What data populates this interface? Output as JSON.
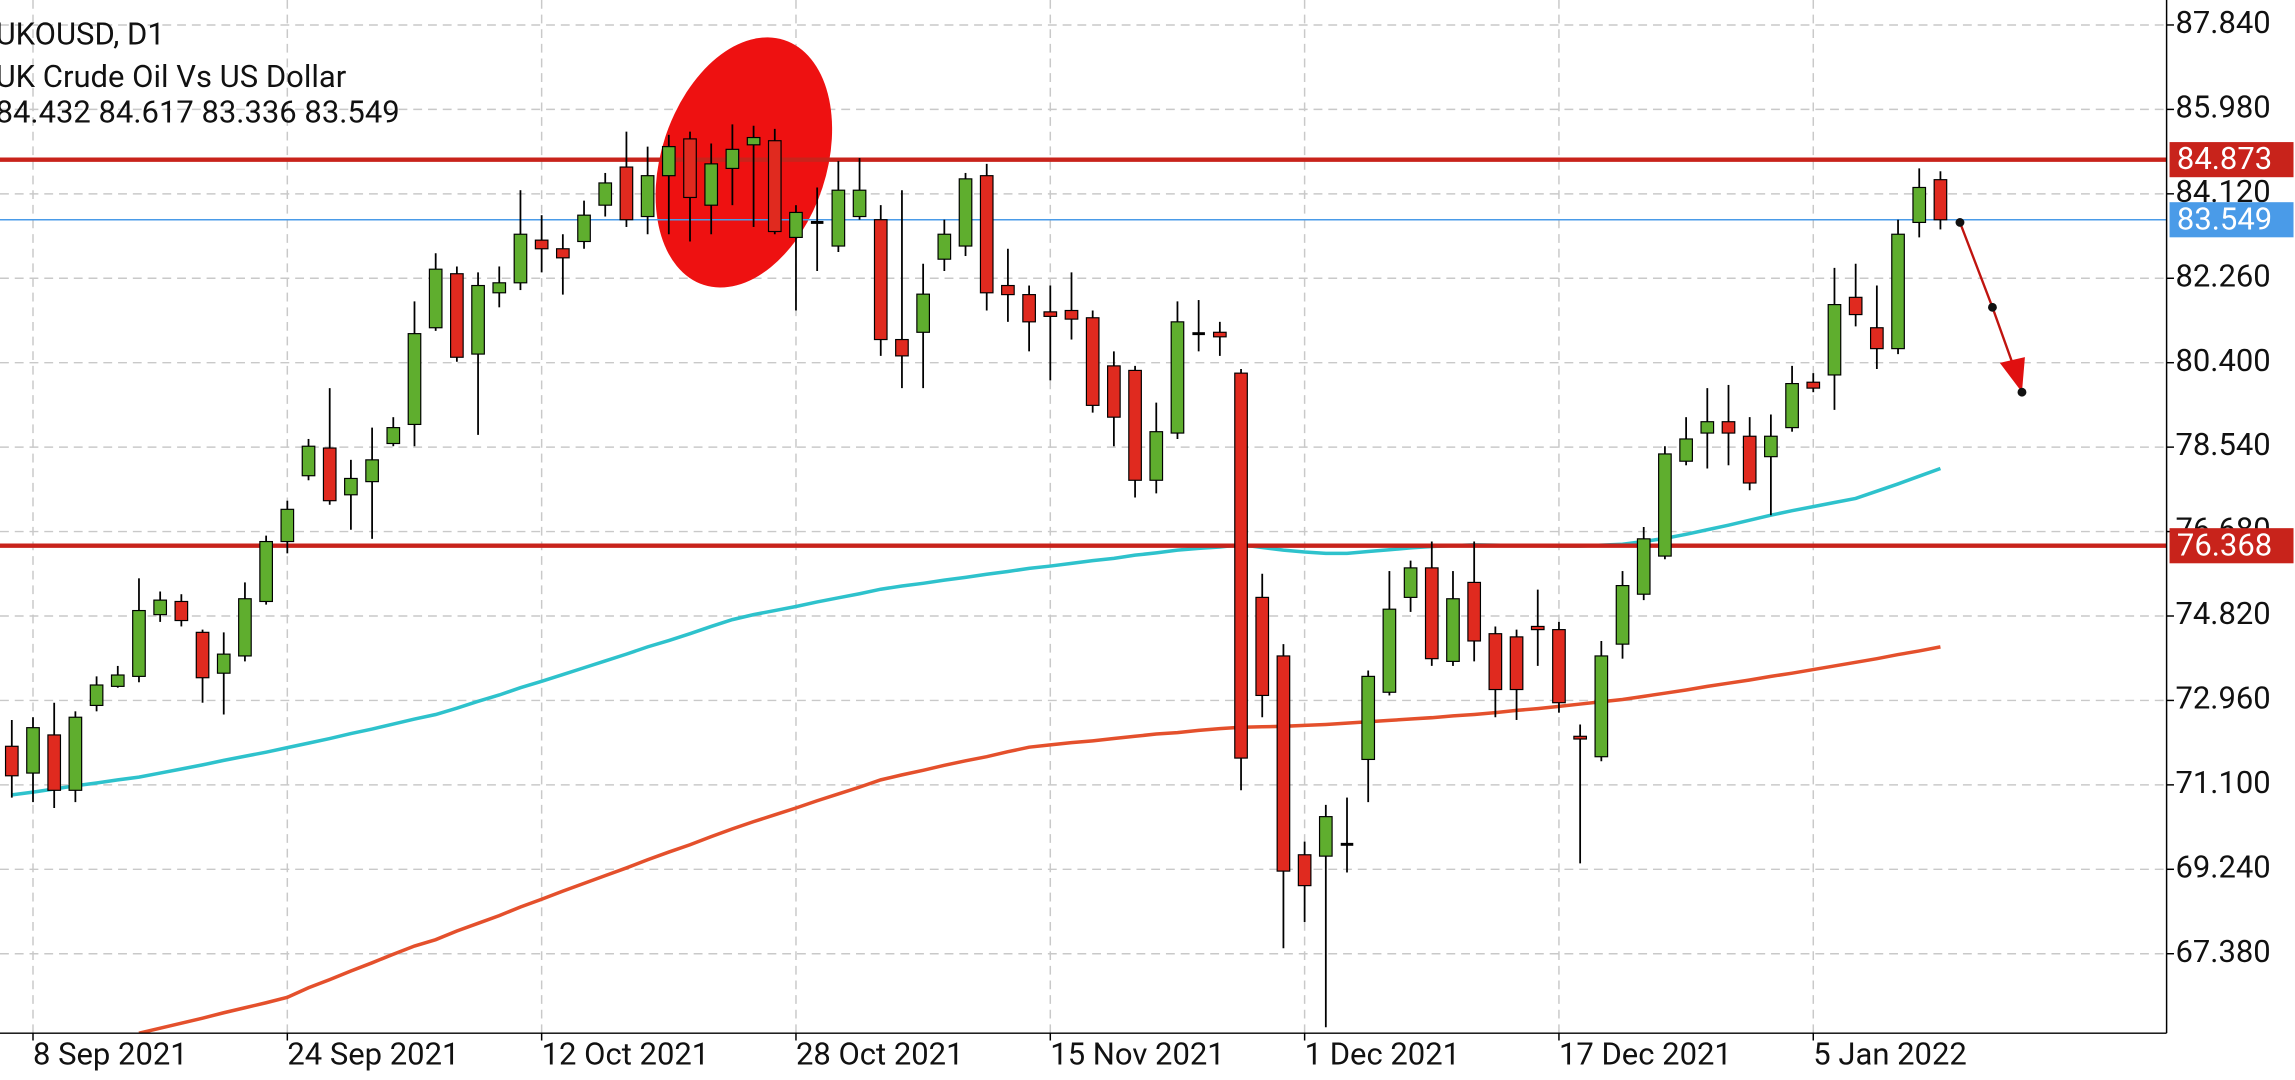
{
  "chart_data": {
    "type": "candlestick",
    "title": "UKOUSD, D1",
    "subtitle": "UK Crude Oil Vs US Dollar",
    "ohlc_text": "84.432 84.617 83.336 83.549",
    "categories": [
      null,
      "8 Sep 2021",
      null,
      null,
      null,
      null,
      null,
      null,
      null,
      null,
      null,
      null,
      null,
      "24 Sep 2021",
      null,
      null,
      null,
      null,
      null,
      null,
      null,
      null,
      null,
      null,
      null,
      "12 Oct 2021",
      null,
      null,
      null,
      null,
      null,
      null,
      null,
      null,
      null,
      null,
      null,
      "28 Oct 2021",
      null,
      null,
      null,
      null,
      null,
      null,
      null,
      null,
      null,
      null,
      null,
      "15 Nov 2021",
      null,
      null,
      null,
      null,
      null,
      null,
      null,
      null,
      null,
      null,
      null,
      "1 Dec 2021",
      null,
      null,
      null,
      null,
      null,
      null,
      null,
      null,
      null,
      null,
      null,
      "17 Dec 2021",
      null,
      null,
      null,
      null,
      null,
      null,
      null,
      null,
      null,
      null,
      null,
      "5 Jan 2022",
      null,
      null,
      null,
      null,
      null,
      null
    ],
    "open": [
      71.95,
      71.36,
      72.2,
      70.98,
      72.85,
      73.27,
      73.49,
      74.85,
      75.14,
      74.46,
      73.56,
      73.94,
      75.14,
      76.46,
      77.91,
      78.52,
      77.49,
      77.78,
      78.62,
      79.04,
      81.17,
      82.36,
      80.59,
      81.94,
      82.16,
      83.1,
      82.91,
      83.07,
      83.87,
      84.71,
      83.62,
      84.52,
      85.33,
      83.87,
      84.68,
      85.2,
      85.29,
      83.16,
      83.49,
      82.97,
      83.62,
      83.55,
      80.91,
      81.07,
      82.68,
      82.97,
      84.52,
      82.1,
      81.9,
      81.52,
      81.55,
      81.39,
      80.33,
      80.23,
      77.81,
      78.85,
      81.04,
      81.07,
      80.17,
      75.23,
      73.94,
      69.56,
      69.53,
      69.79,
      71.66,
      73.14,
      75.23,
      75.88,
      73.82,
      75.56,
      74.43,
      74.36,
      74.59,
      74.52,
      72.17,
      71.72,
      74.2,
      75.3,
      76.14,
      78.23,
      78.85,
      79.1,
      78.78,
      78.33,
      78.97,
      79.97,
      80.13,
      81.84,
      81.17,
      80.71,
      83.49,
      84.432
    ],
    "high": [
      72.53,
      72.59,
      72.91,
      72.72,
      73.49,
      73.72,
      75.65,
      75.36,
      75.3,
      74.52,
      74.46,
      75.56,
      76.59,
      77.36,
      78.72,
      79.84,
      78.26,
      78.97,
      79.2,
      81.75,
      82.81,
      82.52,
      82.39,
      82.52,
      84.2,
      83.65,
      83.23,
      83.97,
      84.58,
      85.49,
      85.16,
      85.42,
      85.49,
      85.23,
      85.65,
      85.62,
      85.55,
      83.87,
      84.26,
      84.84,
      84.91,
      83.87,
      84.2,
      82.58,
      83.55,
      84.58,
      84.78,
      82.91,
      82.1,
      82.1,
      82.39,
      81.55,
      80.65,
      80.33,
      79.52,
      81.75,
      81.78,
      81.3,
      80.26,
      75.75,
      74.2,
      69.85,
      70.66,
      70.82,
      73.62,
      75.81,
      76.04,
      76.46,
      75.81,
      76.46,
      74.59,
      74.52,
      75.4,
      74.69,
      72.43,
      74.27,
      75.81,
      76.78,
      78.56,
      79.2,
      79.84,
      79.91,
      79.2,
      79.26,
      80.33,
      80.17,
      82.49,
      82.58,
      82.1,
      83.55,
      84.68,
      84.617
    ],
    "low": [
      70.82,
      70.72,
      70.59,
      70.72,
      72.72,
      73.24,
      73.36,
      74.69,
      74.59,
      72.91,
      72.65,
      73.82,
      75.07,
      76.2,
      77.81,
      77.27,
      76.72,
      76.52,
      78.56,
      78.56,
      81.1,
      80.42,
      78.81,
      81.62,
      82.0,
      82.39,
      81.9,
      82.91,
      83.62,
      83.39,
      83.23,
      83.23,
      83.07,
      83.23,
      83.87,
      83.39,
      83.23,
      81.55,
      82.42,
      82.84,
      83.55,
      80.55,
      79.84,
      79.84,
      82.42,
      82.75,
      81.55,
      81.3,
      80.65,
      80.01,
      80.91,
      79.3,
      78.56,
      77.43,
      77.52,
      78.72,
      80.65,
      80.55,
      70.98,
      72.59,
      67.5,
      68.08,
      65.76,
      69.17,
      70.72,
      73.07,
      74.91,
      73.72,
      73.72,
      73.82,
      72.59,
      72.53,
      73.72,
      72.69,
      69.37,
      71.62,
      73.88,
      75.17,
      76.07,
      78.14,
      78.07,
      78.14,
      77.59,
      77.04,
      78.88,
      79.75,
      79.36,
      81.2,
      80.26,
      80.59,
      83.16,
      83.336
    ],
    "close": [
      71.3,
      72.36,
      70.98,
      72.59,
      73.3,
      73.52,
      74.94,
      75.17,
      74.72,
      73.46,
      73.98,
      75.2,
      76.46,
      77.17,
      78.56,
      77.36,
      77.85,
      78.26,
      78.97,
      81.04,
      82.46,
      80.52,
      82.1,
      82.16,
      83.23,
      82.91,
      82.71,
      83.65,
      84.36,
      83.55,
      84.52,
      85.16,
      84.04,
      84.78,
      85.1,
      85.36,
      83.29,
      83.71,
      83.49,
      84.2,
      84.2,
      80.91,
      80.55,
      81.91,
      83.23,
      84.45,
      81.94,
      81.9,
      81.3,
      81.42,
      81.36,
      79.46,
      79.2,
      77.81,
      78.88,
      81.3,
      81.04,
      80.97,
      71.69,
      73.07,
      69.2,
      68.88,
      70.4,
      69.79,
      73.49,
      74.97,
      75.88,
      73.88,
      75.2,
      74.27,
      73.2,
      73.2,
      74.52,
      72.91,
      72.11,
      73.94,
      75.49,
      76.52,
      78.39,
      78.72,
      79.1,
      78.85,
      77.75,
      78.78,
      79.94,
      79.84,
      81.68,
      81.46,
      80.71,
      83.23,
      84.26,
      83.549
    ],
    "up_color": "#5fae2e",
    "down_color": "#e02a1f",
    "series": [
      {
        "color": "#2ec2cc",
        "values": [
          70.88,
          70.94,
          71.01,
          71.08,
          71.14,
          71.21,
          71.27,
          71.36,
          71.45,
          71.54,
          71.64,
          71.73,
          71.82,
          71.92,
          72.02,
          72.12,
          72.23,
          72.33,
          72.44,
          72.55,
          72.65,
          72.79,
          72.94,
          73.08,
          73.24,
          73.38,
          73.53,
          73.68,
          73.83,
          73.98,
          74.14,
          74.28,
          74.43,
          74.59,
          74.74,
          74.85,
          74.94,
          75.03,
          75.13,
          75.22,
          75.31,
          75.41,
          75.48,
          75.54,
          75.61,
          75.67,
          75.74,
          75.8,
          75.87,
          75.92,
          75.98,
          76.04,
          76.09,
          76.16,
          76.21,
          76.27,
          76.31,
          76.34,
          76.39,
          76.33,
          76.27,
          76.23,
          76.2,
          76.2,
          76.24,
          76.28,
          76.32,
          76.35,
          76.37,
          76.39,
          76.38,
          76.37,
          76.37,
          76.36,
          76.36,
          76.38,
          76.4,
          76.46,
          76.53,
          76.62,
          76.72,
          76.82,
          76.93,
          77.04,
          77.14,
          77.23,
          77.32,
          77.41,
          77.57,
          77.73,
          77.9,
          78.07
        ]
      },
      {
        "color": "#e4502c",
        "values": [
          null,
          null,
          null,
          null,
          null,
          null,
          65.63,
          65.74,
          65.85,
          65.96,
          66.08,
          66.19,
          66.3,
          66.42,
          66.63,
          66.81,
          67.0,
          67.18,
          67.37,
          67.55,
          67.69,
          67.88,
          68.05,
          68.22,
          68.41,
          68.58,
          68.76,
          68.93,
          69.1,
          69.27,
          69.45,
          69.62,
          69.78,
          69.96,
          70.13,
          70.29,
          70.44,
          70.59,
          70.75,
          70.9,
          71.05,
          71.21,
          71.32,
          71.42,
          71.53,
          71.63,
          71.72,
          71.83,
          71.93,
          71.98,
          72.03,
          72.07,
          72.12,
          72.17,
          72.22,
          72.25,
          72.3,
          72.34,
          72.37,
          72.38,
          72.39,
          72.41,
          72.43,
          72.46,
          72.49,
          72.52,
          72.55,
          72.58,
          72.62,
          72.65,
          72.69,
          72.74,
          72.78,
          72.83,
          72.88,
          72.93,
          72.98,
          73.05,
          73.12,
          73.19,
          73.27,
          73.34,
          73.41,
          73.49,
          73.56,
          73.64,
          73.72,
          73.8,
          73.88,
          73.97,
          74.05,
          74.14
        ]
      }
    ],
    "levels": [
      {
        "value": 84.873,
        "color": "#c8231b"
      },
      {
        "value": 76.368,
        "color": "#c8231b"
      }
    ],
    "last_price": {
      "value": 83.549,
      "color": "#4a9be8"
    },
    "ylim": [
      65.63,
      88.39
    ],
    "yticks": [
      {
        "value": 87.84,
        "label": "87.840"
      },
      {
        "value": 85.98,
        "label": "85.980"
      },
      {
        "value": 84.12,
        "label": "84.120"
      },
      {
        "value": 82.26,
        "label": "82.260"
      },
      {
        "value": 80.4,
        "label": "80.400"
      },
      {
        "value": 78.54,
        "label": "78.540"
      },
      {
        "value": 76.68,
        "label": "76.680"
      },
      {
        "value": 74.82,
        "label": "74.820"
      },
      {
        "value": 72.96,
        "label": "72.960"
      },
      {
        "value": 71.1,
        "label": "71.100"
      },
      {
        "value": 69.24,
        "label": "69.240"
      },
      {
        "value": 67.38,
        "label": "67.380"
      }
    ],
    "grid": true
  }
}
